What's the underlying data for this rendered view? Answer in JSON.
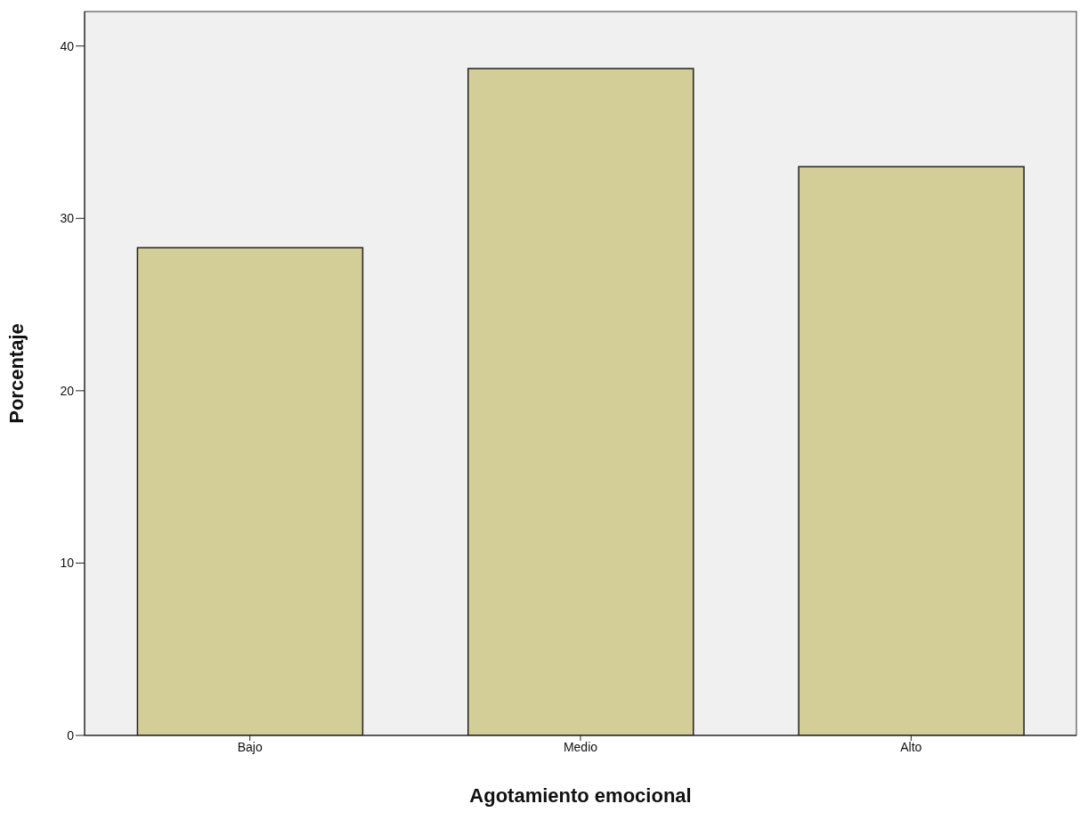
{
  "chart_data": {
    "type": "bar",
    "xlabel": "Agotamiento emocional",
    "ylabel": "Porcentaje",
    "categories": [
      "Bajo",
      "Medio",
      "Alto"
    ],
    "values": [
      28.3,
      38.7,
      33.0
    ],
    "color": "#d3cd97",
    "ylim": [
      0,
      42
    ],
    "yticks": [
      0,
      10,
      20,
      30,
      40
    ]
  }
}
